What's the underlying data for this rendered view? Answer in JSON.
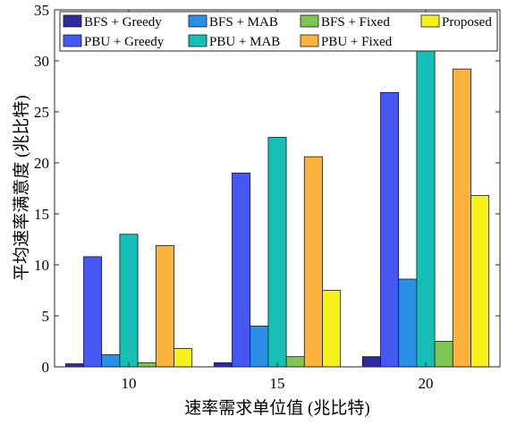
{
  "chart_data": {
    "type": "bar",
    "categories": [
      "10",
      "15",
      "20"
    ],
    "xlabel": "速率需求单位值 (兆比特)",
    "ylabel": "平均速率满意度 (兆比特)",
    "ylim": [
      0,
      35
    ],
    "yticks": [
      0,
      5,
      10,
      15,
      20,
      25,
      30,
      35
    ],
    "grid": false,
    "legend_position": "top",
    "series": [
      {
        "name": "BFS + Greedy",
        "color": "#2e2a9e",
        "values": [
          0.3,
          0.4,
          1.0
        ]
      },
      {
        "name": "PBU + Greedy",
        "color": "#4457f0",
        "values": [
          10.8,
          19.0,
          26.9
        ]
      },
      {
        "name": "BFS + MAB",
        "color": "#2b8fe6",
        "values": [
          1.2,
          4.0,
          8.6
        ]
      },
      {
        "name": "PBU + MAB",
        "color": "#16bfb6",
        "values": [
          13.0,
          22.5,
          31.0
        ]
      },
      {
        "name": "BFS + Fixed",
        "color": "#7ec653",
        "values": [
          0.4,
          1.0,
          2.5
        ]
      },
      {
        "name": "PBU + Fixed",
        "color": "#fbb33c",
        "values": [
          11.9,
          20.6,
          29.2
        ]
      },
      {
        "name": "Proposed",
        "color": "#f7f21a",
        "values": [
          1.8,
          7.5,
          16.8
        ]
      }
    ]
  }
}
